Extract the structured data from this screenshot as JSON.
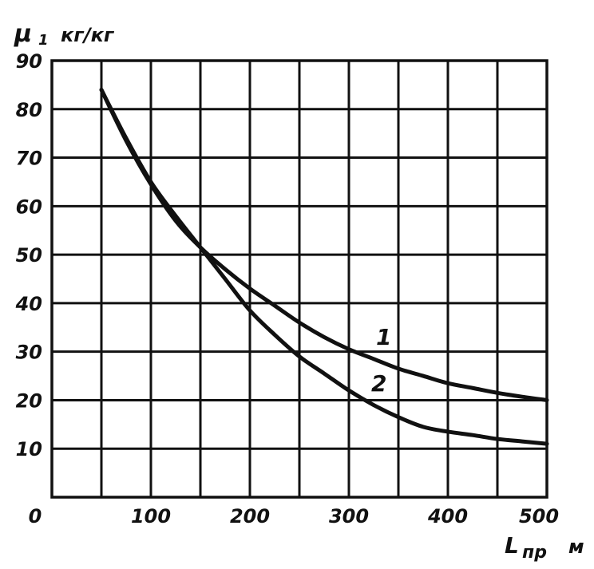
{
  "chart_data": {
    "type": "line",
    "ylabel_symbol": "μ",
    "ylabel_subscript": "1",
    "ylabel_unit": "кг/кг",
    "xlabel_symbol": "L",
    "xlabel_subscript": "пр",
    "xlabel_unit": "м",
    "xlim": [
      0,
      500
    ],
    "ylim": [
      0,
      90
    ],
    "x_ticks": [
      100,
      200,
      300,
      400,
      500
    ],
    "y_ticks": [
      10,
      20,
      30,
      40,
      50,
      60,
      70,
      80,
      90
    ],
    "origin_label": "0",
    "grid": true,
    "series": [
      {
        "name": "1",
        "x": [
          50,
          75,
          100,
          125,
          150,
          175,
          200,
          225,
          250,
          275,
          300,
          325,
          350,
          375,
          400,
          425,
          450,
          475,
          500
        ],
        "y": [
          84,
          73.5,
          64.5,
          57,
          51.5,
          47,
          43,
          39.5,
          36,
          33,
          30.5,
          28.5,
          26.5,
          25,
          23.5,
          22.5,
          21.5,
          20.7,
          20
        ]
      },
      {
        "name": "2",
        "x": [
          50,
          75,
          100,
          125,
          150,
          175,
          200,
          225,
          250,
          275,
          300,
          325,
          350,
          375,
          400,
          425,
          450,
          475,
          500
        ],
        "y": [
          84,
          74,
          65,
          58,
          51.5,
          45,
          38.5,
          33.5,
          29,
          25.5,
          22,
          19,
          16.5,
          14.5,
          13.5,
          12.8,
          12,
          11.5,
          11
        ]
      }
    ]
  }
}
